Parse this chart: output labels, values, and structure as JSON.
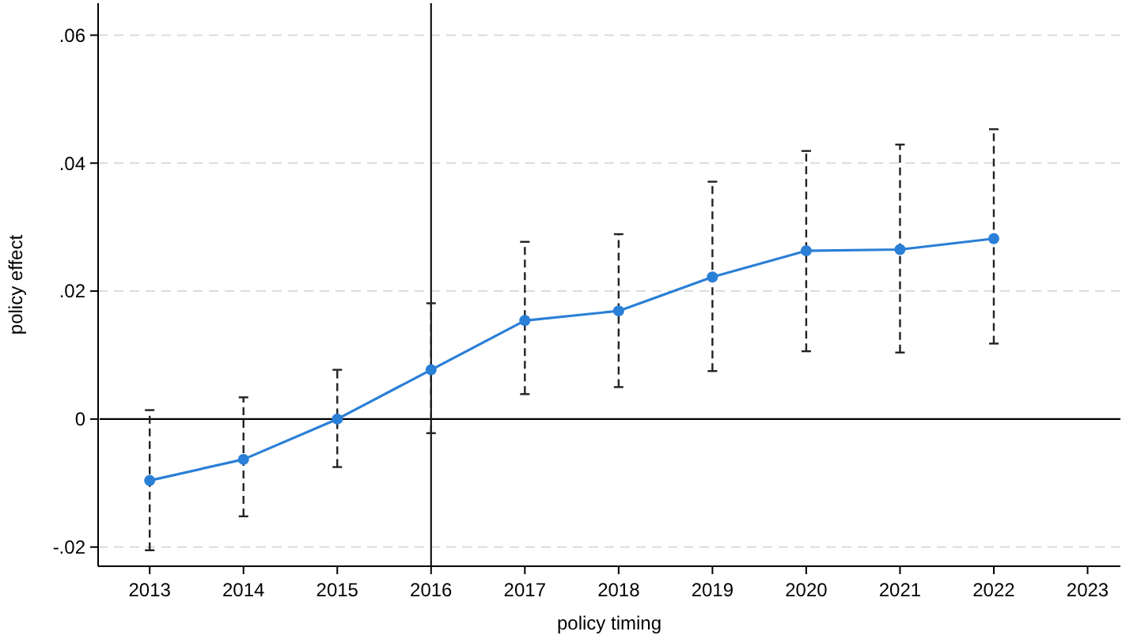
{
  "chart_data": {
    "type": "line",
    "xlabel": "policy timing",
    "ylabel": "policy effect",
    "x": [
      2013,
      2014,
      2015,
      2016,
      2017,
      2018,
      2019,
      2020,
      2021,
      2022
    ],
    "series": [
      {
        "color": "#2a7fd6",
        "values": [
          -0.0096,
          -0.0063,
          0,
          0.0077,
          0.0154,
          0.0169,
          0.0222,
          0.0263,
          0.0265,
          0.0282
        ],
        "errors": [
          [
            -0.0205,
            0.0014
          ],
          [
            -0.0152,
            0.0034
          ],
          [
            -0.0075,
            0.0077
          ],
          [
            -0.0022,
            0.0181
          ],
          [
            0.0039,
            0.0277
          ],
          [
            0.005,
            0.0289
          ],
          [
            0.0075,
            0.0371
          ],
          [
            0.0106,
            0.0419
          ],
          [
            0.0104,
            0.0429
          ],
          [
            0.0118,
            0.0453
          ]
        ]
      }
    ],
    "xlim": [
      2012.45,
      2023.35
    ],
    "xticks": [
      2013,
      2014,
      2015,
      2016,
      2017,
      2018,
      2019,
      2020,
      2021,
      2022,
      2023
    ],
    "ylim": [
      -0.023,
      0.065
    ],
    "yticks": [
      {
        "value": -0.02,
        "label": "-.02"
      },
      0,
      {
        "value": 0.02,
        "label": ".02"
      },
      {
        "value": 0.04,
        "label": ".04"
      },
      {
        "value": 0.06,
        "label": ".06"
      }
    ],
    "grid": "y",
    "marker": "circle",
    "line_style": "solid",
    "ref_lines": [
      {
        "axis": "x",
        "value": 2016,
        "color": "#000000"
      },
      {
        "axis": "y",
        "value": 0,
        "color": "#000000"
      }
    ]
  }
}
